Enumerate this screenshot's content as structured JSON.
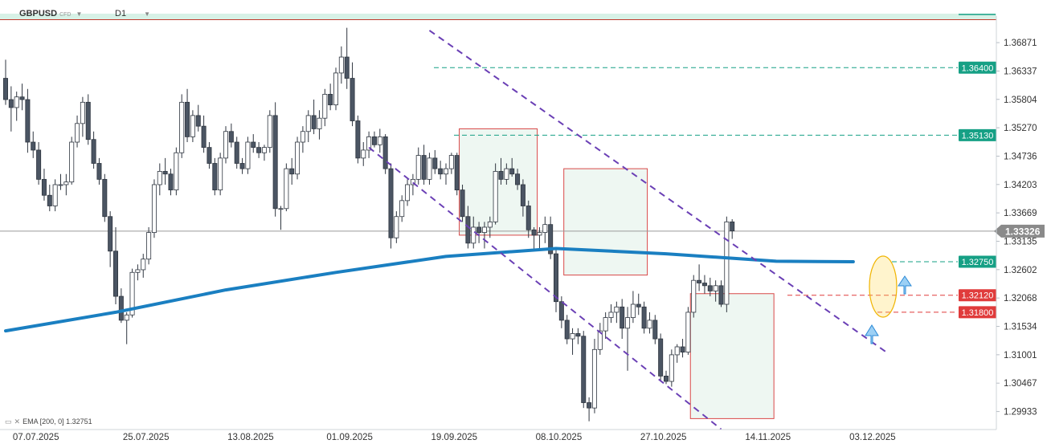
{
  "header": {
    "symbol": "GBPUSD",
    "instrument_type": "CFD",
    "timeframe": "D1"
  },
  "indicator_label": {
    "name": "EMA",
    "params": "[200, 0]",
    "value": "1.32751"
  },
  "colors": {
    "bull_candle": "#ffffff",
    "bear_candle": "#4b5563",
    "ema": "#1a7fc1",
    "channel": "#6a3fb5",
    "resistance": "#16a085",
    "support": "#e03b3b",
    "current_price": "#888888",
    "box": "#d94848",
    "box_fill": "#eef7f2"
  },
  "chart_data": {
    "type": "candlestick",
    "y_axis": {
      "min": 1.2967,
      "max": 1.3725,
      "ticks": [
        "1.36871",
        "1.36337",
        "1.35804",
        "1.35270",
        "1.34736",
        "1.34203",
        "1.33669",
        "1.33135",
        "1.32602",
        "1.32068",
        "1.31534",
        "1.31001",
        "1.30467",
        "1.29933"
      ]
    },
    "x_axis": {
      "date_labels": [
        {
          "label": "07.07.2025",
          "bar": 2
        },
        {
          "label": "25.07.2025",
          "bar": 22
        },
        {
          "label": "13.08.2025",
          "bar": 41
        },
        {
          "label": "01.09.2025",
          "bar": 59
        },
        {
          "label": "19.09.2025",
          "bar": 78
        },
        {
          "label": "08.10.2025",
          "bar": 97
        },
        {
          "label": "27.10.2025",
          "bar": 116
        },
        {
          "label": "14.11.2025",
          "bar": 135
        },
        {
          "label": "03.12.2025",
          "bar": 154
        }
      ]
    },
    "candles": [
      [
        1.362,
        1.3655,
        1.357,
        1.358
      ],
      [
        1.358,
        1.3605,
        1.352,
        1.3565
      ],
      [
        1.3565,
        1.3595,
        1.354,
        1.3585
      ],
      [
        1.3585,
        1.361,
        1.356,
        1.358
      ],
      [
        1.358,
        1.36,
        1.348,
        1.35
      ],
      [
        1.35,
        1.352,
        1.347,
        1.3485
      ],
      [
        1.3485,
        1.35,
        1.342,
        1.343
      ],
      [
        1.343,
        1.345,
        1.339,
        1.34
      ],
      [
        1.34,
        1.342,
        1.337,
        1.338
      ],
      [
        1.338,
        1.343,
        1.337,
        1.342
      ],
      [
        1.342,
        1.344,
        1.341,
        1.342
      ],
      [
        1.342,
        1.344,
        1.34,
        1.3425
      ],
      [
        1.3425,
        1.351,
        1.342,
        1.35
      ],
      [
        1.35,
        1.355,
        1.349,
        1.3535
      ],
      [
        1.3535,
        1.3585,
        1.351,
        1.3575
      ],
      [
        1.3575,
        1.359,
        1.3495,
        1.3505
      ],
      [
        1.3505,
        1.352,
        1.345,
        1.346
      ],
      [
        1.346,
        1.347,
        1.342,
        1.343
      ],
      [
        1.343,
        1.344,
        1.335,
        1.336
      ],
      [
        1.336,
        1.337,
        1.3265,
        1.3295
      ],
      [
        1.3295,
        1.334,
        1.3195,
        1.321
      ],
      [
        1.321,
        1.3225,
        1.316,
        1.3165
      ],
      [
        1.3165,
        1.318,
        1.312,
        1.3175
      ],
      [
        1.3175,
        1.3262,
        1.317,
        1.3255
      ],
      [
        1.3255,
        1.327,
        1.324,
        1.326
      ],
      [
        1.326,
        1.329,
        1.3245,
        1.328
      ],
      [
        1.328,
        1.334,
        1.327,
        1.333
      ],
      [
        1.333,
        1.343,
        1.332,
        1.342
      ],
      [
        1.342,
        1.346,
        1.34,
        1.3445
      ],
      [
        1.3445,
        1.347,
        1.342,
        1.344
      ],
      [
        1.344,
        1.345,
        1.34,
        1.341
      ],
      [
        1.341,
        1.349,
        1.34,
        1.348
      ],
      [
        1.348,
        1.359,
        1.347,
        1.3575
      ],
      [
        1.3575,
        1.36,
        1.35,
        1.351
      ],
      [
        1.351,
        1.356,
        1.35,
        1.355
      ],
      [
        1.355,
        1.357,
        1.352,
        1.353
      ],
      [
        1.353,
        1.355,
        1.348,
        1.349
      ],
      [
        1.349,
        1.35,
        1.345,
        1.346
      ],
      [
        1.346,
        1.347,
        1.34,
        1.341
      ],
      [
        1.341,
        1.348,
        1.34,
        1.347
      ],
      [
        1.347,
        1.353,
        1.346,
        1.352
      ],
      [
        1.352,
        1.3535,
        1.349,
        1.35
      ],
      [
        1.35,
        1.351,
        1.345,
        1.346
      ],
      [
        1.346,
        1.347,
        1.344,
        1.345
      ],
      [
        1.345,
        1.351,
        1.344,
        1.35
      ],
      [
        1.35,
        1.3515,
        1.348,
        1.349
      ],
      [
        1.349,
        1.35,
        1.347,
        1.348
      ],
      [
        1.348,
        1.3495,
        1.3465,
        1.349
      ],
      [
        1.349,
        1.356,
        1.348,
        1.355
      ],
      [
        1.355,
        1.3575,
        1.336,
        1.3375
      ],
      [
        1.3375,
        1.338,
        1.3335,
        1.3375
      ],
      [
        1.3375,
        1.346,
        1.337,
        1.345
      ],
      [
        1.345,
        1.347,
        1.342,
        1.344
      ],
      [
        1.344,
        1.351,
        1.343,
        1.35
      ],
      [
        1.35,
        1.353,
        1.348,
        1.352
      ],
      [
        1.352,
        1.356,
        1.35,
        1.355
      ],
      [
        1.355,
        1.358,
        1.3515,
        1.3525
      ],
      [
        1.3525,
        1.356,
        1.3505,
        1.3545
      ],
      [
        1.3545,
        1.36,
        1.353,
        1.359
      ],
      [
        1.359,
        1.361,
        1.356,
        1.357
      ],
      [
        1.357,
        1.364,
        1.356,
        1.363
      ],
      [
        1.363,
        1.368,
        1.361,
        1.366
      ],
      [
        1.366,
        1.3715,
        1.36,
        1.362
      ],
      [
        1.362,
        1.365,
        1.353,
        1.354
      ],
      [
        1.354,
        1.355,
        1.346,
        1.347
      ],
      [
        1.347,
        1.35,
        1.3455,
        1.3485
      ],
      [
        1.3485,
        1.352,
        1.347,
        1.351
      ],
      [
        1.351,
        1.352,
        1.349,
        1.3495
      ],
      [
        1.3495,
        1.3525,
        1.348,
        1.351
      ],
      [
        1.351,
        1.3515,
        1.344,
        1.345
      ],
      [
        1.345,
        1.346,
        1.33,
        1.332
      ],
      [
        1.332,
        1.337,
        1.331,
        1.336
      ],
      [
        1.336,
        1.34,
        1.335,
        1.339
      ],
      [
        1.339,
        1.343,
        1.338,
        1.342
      ],
      [
        1.342,
        1.344,
        1.34,
        1.343
      ],
      [
        1.343,
        1.349,
        1.342,
        1.3475
      ],
      [
        1.3475,
        1.3495,
        1.342,
        1.343
      ],
      [
        1.343,
        1.348,
        1.342,
        1.347
      ],
      [
        1.347,
        1.3485,
        1.344,
        1.345
      ],
      [
        1.345,
        1.3465,
        1.343,
        1.344
      ],
      [
        1.344,
        1.346,
        1.342,
        1.345
      ],
      [
        1.345,
        1.348,
        1.344,
        1.3475
      ],
      [
        1.3475,
        1.348,
        1.34,
        1.341
      ],
      [
        1.341,
        1.342,
        1.335,
        1.336
      ],
      [
        1.336,
        1.338,
        1.33,
        1.331
      ],
      [
        1.331,
        1.336,
        1.33,
        1.334
      ],
      [
        1.334,
        1.335,
        1.331,
        1.333
      ],
      [
        1.333,
        1.335,
        1.33,
        1.334
      ],
      [
        1.334,
        1.336,
        1.332,
        1.335
      ],
      [
        1.335,
        1.346,
        1.3345,
        1.3445
      ],
      [
        1.3445,
        1.347,
        1.342,
        1.343
      ],
      [
        1.343,
        1.346,
        1.342,
        1.345
      ],
      [
        1.345,
        1.347,
        1.3435,
        1.344
      ],
      [
        1.344,
        1.345,
        1.341,
        1.342
      ],
      [
        1.342,
        1.343,
        1.336,
        1.338
      ],
      [
        1.338,
        1.339,
        1.332,
        1.3335
      ],
      [
        1.3335,
        1.334,
        1.33,
        1.3325
      ],
      [
        1.3325,
        1.334,
        1.33,
        1.333
      ],
      [
        1.333,
        1.336,
        1.331,
        1.3345
      ],
      [
        1.3345,
        1.336,
        1.328,
        1.329
      ],
      [
        1.329,
        1.33,
        1.318,
        1.32
      ],
      [
        1.32,
        1.321,
        1.315,
        1.3165
      ],
      [
        1.3165,
        1.3175,
        1.312,
        1.313
      ],
      [
        1.313,
        1.315,
        1.31,
        1.314
      ],
      [
        1.314,
        1.315,
        1.312,
        1.3135
      ],
      [
        1.3135,
        1.3145,
        1.3,
        1.301
      ],
      [
        1.301,
        1.302,
        1.2975,
        1.3
      ],
      [
        1.3,
        1.313,
        1.299,
        1.311
      ],
      [
        1.311,
        1.316,
        1.31,
        1.3145
      ],
      [
        1.3145,
        1.318,
        1.313,
        1.317
      ],
      [
        1.317,
        1.3195,
        1.316,
        1.318
      ],
      [
        1.318,
        1.32,
        1.316,
        1.319
      ],
      [
        1.319,
        1.3205,
        1.313,
        1.315
      ],
      [
        1.315,
        1.319,
        1.307,
        1.317
      ],
      [
        1.317,
        1.322,
        1.316,
        1.3195
      ],
      [
        1.3195,
        1.3215,
        1.3175,
        1.319
      ],
      [
        1.319,
        1.32,
        1.314,
        1.315
      ],
      [
        1.315,
        1.318,
        1.314,
        1.3165
      ],
      [
        1.3165,
        1.3175,
        1.312,
        1.313
      ],
      [
        1.313,
        1.314,
        1.305,
        1.306
      ],
      [
        1.306,
        1.307,
        1.3045,
        1.305
      ],
      [
        1.305,
        1.311,
        1.304,
        1.31
      ],
      [
        1.31,
        1.312,
        1.3085,
        1.3115
      ],
      [
        1.3115,
        1.313,
        1.3095,
        1.3105
      ],
      [
        1.3105,
        1.319,
        1.31,
        1.318
      ],
      [
        1.318,
        1.325,
        1.317,
        1.324
      ],
      [
        1.324,
        1.327,
        1.322,
        1.3235
      ],
      [
        1.3235,
        1.325,
        1.3215,
        1.323
      ],
      [
        1.323,
        1.3245,
        1.321,
        1.322
      ],
      [
        1.322,
        1.324,
        1.32,
        1.323
      ],
      [
        1.323,
        1.324,
        1.319,
        1.3195
      ],
      [
        1.3195,
        1.336,
        1.318,
        1.335
      ],
      [
        1.335,
        1.3355,
        1.3318,
        1.3333
      ]
    ],
    "ema": {
      "name": "EMA [200, 0]",
      "points": [
        [
          0,
          1.3145
        ],
        [
          20,
          1.318
        ],
        [
          40,
          1.3222
        ],
        [
          60,
          1.3255
        ],
        [
          80,
          1.3285
        ],
        [
          100,
          1.33
        ],
        [
          120,
          1.329
        ],
        [
          140,
          1.3276
        ],
        [
          154,
          1.32751
        ]
      ]
    },
    "current_price": 1.33326,
    "price_badges": [
      {
        "label": "1.36400",
        "value": 1.364,
        "kind": "resistance"
      },
      {
        "label": "1.35130",
        "value": 1.3513,
        "kind": "resistance"
      },
      {
        "label": "1.32750",
        "value": 1.3275,
        "kind": "resistance"
      },
      {
        "label": "1.32120",
        "value": 1.3212,
        "kind": "support"
      },
      {
        "label": "1.31800",
        "value": 1.318,
        "kind": "support"
      },
      {
        "label": "1.33326",
        "value": 1.33326,
        "kind": "current"
      }
    ],
    "channel": {
      "upper": [
        [
          77,
          1.371
        ],
        [
          160,
          1.3105
        ]
      ],
      "lower": [
        [
          66,
          1.349
        ],
        [
          130,
          1.296
        ]
      ]
    },
    "boxes": [
      {
        "from_bar": 83,
        "to_bar": 96,
        "high": 1.3525,
        "low": 1.3325
      },
      {
        "from_bar": 102,
        "to_bar": 116,
        "high": 1.345,
        "low": 1.325
      },
      {
        "from_bar": 125,
        "to_bar": 139,
        "high": 1.3215,
        "low": 1.298
      }
    ]
  }
}
